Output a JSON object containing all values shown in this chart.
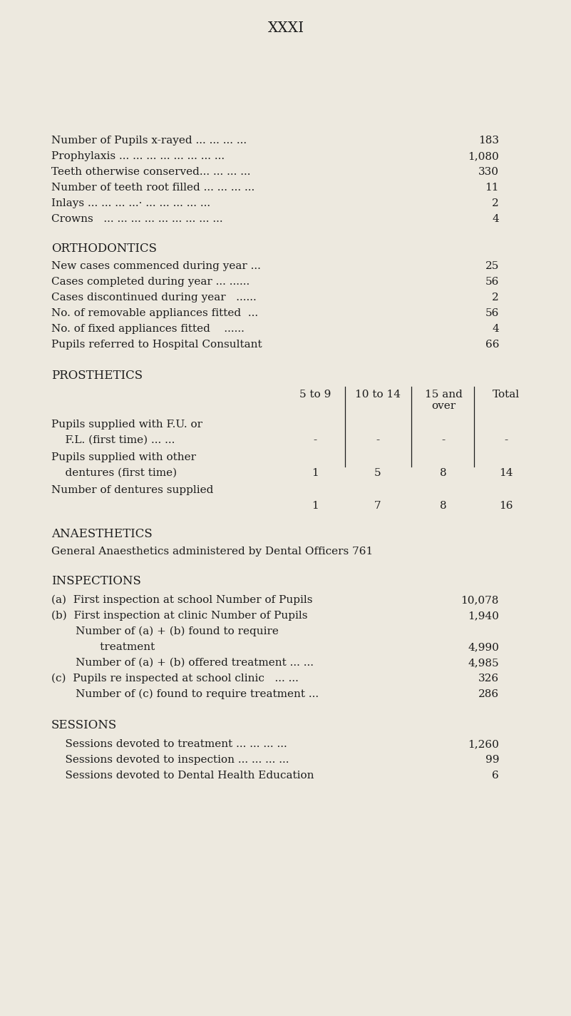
{
  "bg_color": "#ede9df",
  "text_color": "#1c1c1c",
  "title": "XXXI",
  "general_rows": [
    {
      "label": "Number of Pupils x-rayed ... ... ... ...",
      "value": "183"
    },
    {
      "label": "Prophylaxis ... ... ... ... ... ... ... ...",
      "value": "1,080"
    },
    {
      "label": "Teeth otherwise conserved... ... ... ...",
      "value": "330"
    },
    {
      "label": "Number of teeth root filled ... ... ... ...",
      "value": "11"
    },
    {
      "label": "Inlays ... ... ... ...· ... ... ... ... ...",
      "value": "2"
    },
    {
      "label": "Crowns   ... ... ... ... ... ... ... ... ...",
      "value": "4"
    }
  ],
  "ortho_header": "ORTHODONTICS",
  "ortho_rows": [
    {
      "label": "New cases commenced during year ...",
      "value": "25"
    },
    {
      "label": "Cases completed during year ... ......",
      "value": "56"
    },
    {
      "label": "Cases discontinued during year   ......",
      "value": "2"
    },
    {
      "label": "No. of removable appliances fitted  ...",
      "value": "56"
    },
    {
      "label": "No. of fixed appliances fitted    ......",
      "value": "4"
    },
    {
      "label": "Pupils referred to Hospital Consultant",
      "value": "66"
    }
  ],
  "prost_header": "PROSTHETICS",
  "prost_col_headers": [
    "5 to 9",
    "10 to 14",
    "15 and\nover",
    "Total"
  ],
  "prost_rows": [
    {
      "label1": "Pupils supplied with F.U. or",
      "label2": "    F.L. (first time) ... ...",
      "values": [
        "-",
        "-",
        "-",
        "-"
      ]
    },
    {
      "label1": "Pupils supplied with other",
      "label2": "    dentures (first time)",
      "values": [
        "1",
        "5",
        "8",
        "14"
      ]
    },
    {
      "label1": "Number of dentures supplied",
      "label2": "",
      "values": [
        "1",
        "7",
        "8",
        "16"
      ]
    }
  ],
  "anaes_header": "ANAESTHETICS",
  "anaes_text": "General Anaesthetics administered by Dental Officers 761",
  "insp_header": "INSPECTIONS",
  "insp_rows": [
    {
      "label": "(a)  First inspection at school Number of Pupils",
      "value": "10,078"
    },
    {
      "label": "(b)  First inspection at clinic Number of Pupils",
      "value": "1,940"
    },
    {
      "label": "       Number of (a) + (b) found to require",
      "value": ""
    },
    {
      "label": "              treatment",
      "value": "4,990"
    },
    {
      "label": "       Number of (a) + (b) offered treatment ... ...",
      "value": "4,985"
    },
    {
      "label": "(c)  Pupils re inspected at school clinic   ... ...",
      "value": "326"
    },
    {
      "label": "       Number of (c) found to require treatment ...",
      "value": "286"
    }
  ],
  "sess_header": "SESSIONS",
  "sess_rows": [
    {
      "label": "    Sessions devoted to treatment ... ... ... ...",
      "value": "1,260"
    },
    {
      "label": "    Sessions devoted to inspection ... ... ... ...",
      "value": "99"
    },
    {
      "label": "    Sessions devoted to Dental Health Education",
      "value": "6"
    }
  ],
  "font_size": 11.0,
  "header_font_size": 12.0,
  "title_font_size": 14.5
}
